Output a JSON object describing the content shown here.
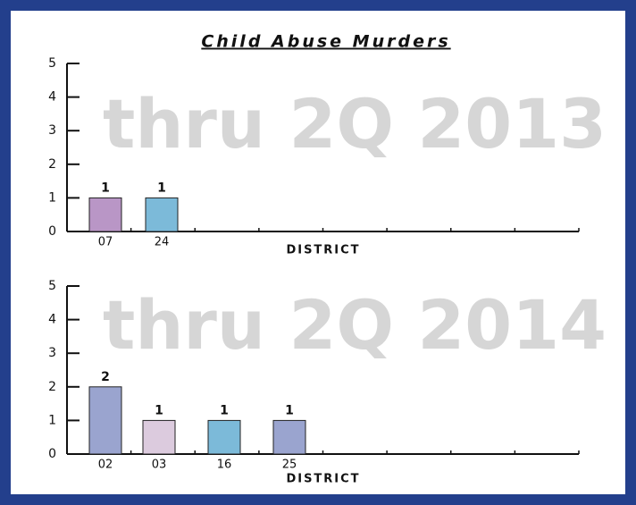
{
  "chart_data": [
    {
      "type": "bar",
      "title": "Child Abuse Murders",
      "annotation": "thru 2Q  2013",
      "categories": [
        "07",
        "24"
      ],
      "values": [
        1,
        1
      ],
      "colors": [
        "#b996c6",
        "#7cbad9"
      ],
      "xlabel": "DISTRICT",
      "ylim": [
        0,
        5
      ],
      "yticks": [
        0,
        1,
        2,
        3,
        4,
        5
      ]
    },
    {
      "type": "bar",
      "annotation": "thru 2Q  2014",
      "categories": [
        "02",
        "03",
        "16",
        "25"
      ],
      "values": [
        2,
        1,
        1,
        1
      ],
      "colors": [
        "#9aa4cf",
        "#dccbde",
        "#7cbad9",
        "#9aa4cf"
      ],
      "xlabel": "DISTRICT",
      "ylim": [
        0,
        5
      ],
      "yticks": [
        0,
        1,
        2,
        3,
        4,
        5
      ]
    }
  ]
}
